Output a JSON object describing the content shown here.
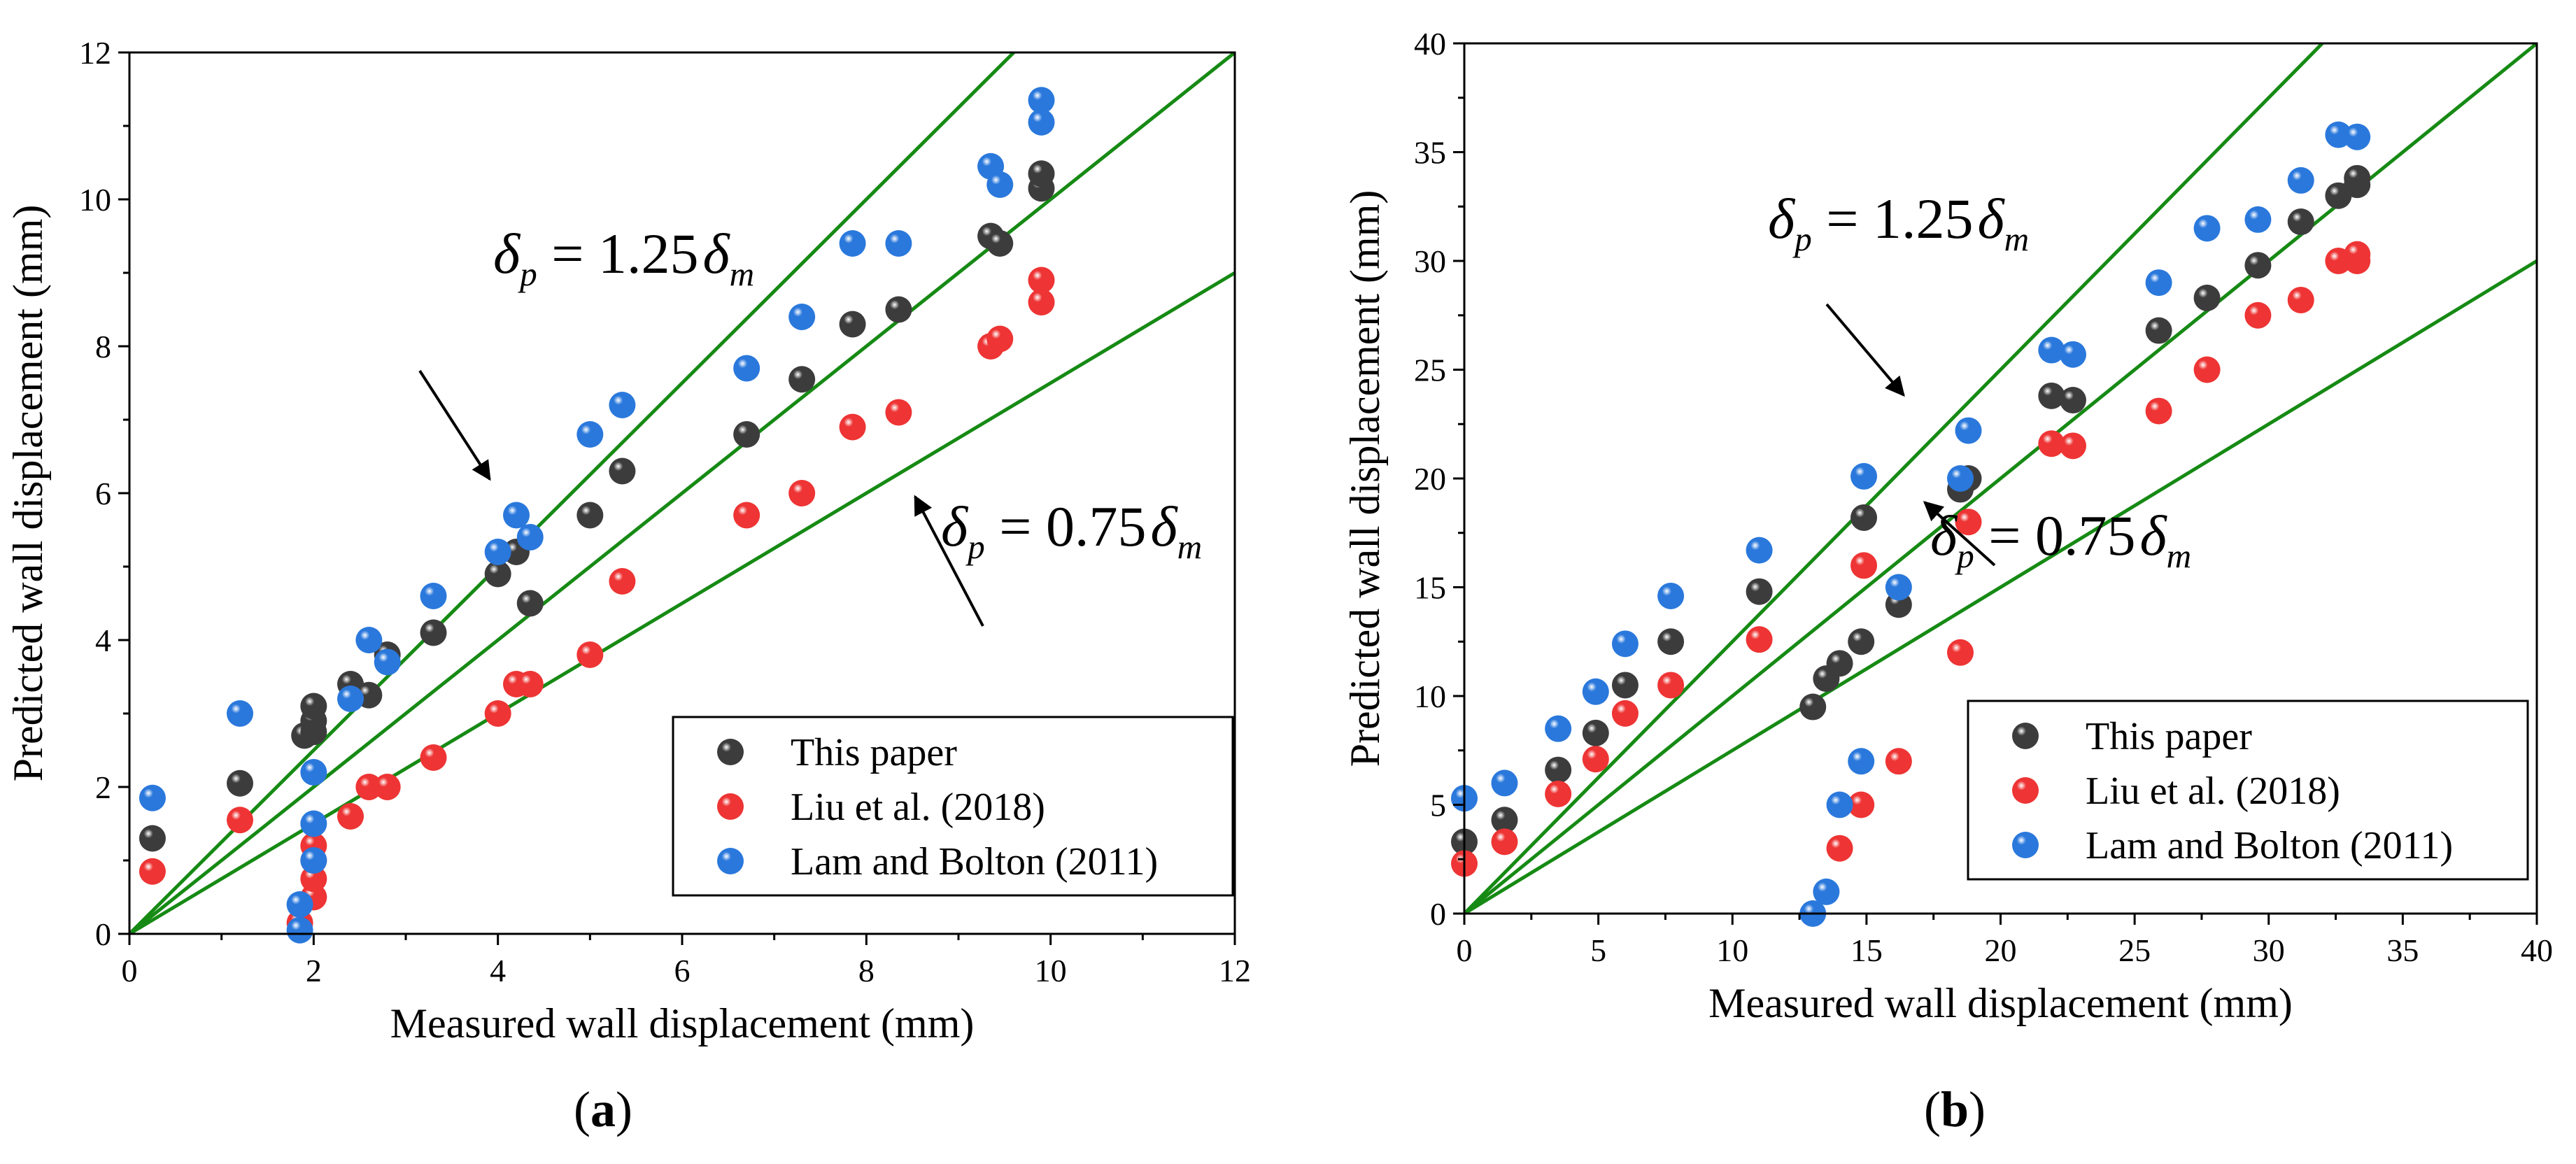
{
  "chart_data": [
    {
      "panel": "(a)",
      "panel_letter": "a",
      "type": "scatter",
      "xlabel": "Measured wall displacement (mm)",
      "ylabel": "Predicted wall displacement (mm)",
      "xlim": [
        0,
        12
      ],
      "ylim": [
        0,
        12
      ],
      "xticks": [
        0,
        2,
        4,
        6,
        8,
        10,
        12
      ],
      "yticks": [
        0,
        2,
        4,
        6,
        8,
        10,
        12
      ],
      "legend": [
        "This paper",
        "Liu et al. (2018)",
        "Lam and Bolton (2011)"
      ],
      "lines": [
        {
          "slope": 1.25,
          "label": "δp = 1.25δm"
        },
        {
          "slope": 1.0,
          "label": ""
        },
        {
          "slope": 0.75,
          "label": "δp = 0.75δm"
        }
      ],
      "annotations": [
        {
          "sym1": "δ",
          "sub1": "p",
          "eq": " = 1.25",
          "sym2": "δ",
          "sub2": "m"
        },
        {
          "sym1": "δ",
          "sub1": "p",
          "eq": " = 0.75",
          "sym2": "δ",
          "sub2": "m"
        }
      ],
      "series": [
        {
          "name": "This paper",
          "color": "#3c3c3c",
          "points": [
            [
              0.25,
              1.3
            ],
            [
              1.2,
              2.05
            ],
            [
              1.9,
              2.7
            ],
            [
              2.0,
              2.75
            ],
            [
              2.0,
              2.9
            ],
            [
              2.0,
              3.1
            ],
            [
              2.4,
              3.4
            ],
            [
              2.6,
              3.25
            ],
            [
              2.8,
              3.8
            ],
            [
              3.3,
              4.1
            ],
            [
              4.0,
              4.9
            ],
            [
              4.2,
              5.2
            ],
            [
              4.35,
              4.5
            ],
            [
              5.0,
              5.7
            ],
            [
              5.35,
              6.3
            ],
            [
              6.7,
              6.8
            ],
            [
              7.3,
              7.55
            ],
            [
              7.85,
              8.3
            ],
            [
              8.35,
              8.5
            ],
            [
              9.35,
              9.5
            ],
            [
              9.45,
              9.4
            ],
            [
              9.9,
              10.15
            ],
            [
              9.9,
              10.35
            ]
          ]
        },
        {
          "name": "Liu et al. (2018)",
          "color": "#ee3434",
          "points": [
            [
              0.25,
              0.85
            ],
            [
              1.2,
              1.55
            ],
            [
              1.85,
              0.15
            ],
            [
              2.0,
              0.5
            ],
            [
              2.0,
              0.75
            ],
            [
              2.0,
              1.0
            ],
            [
              2.0,
              1.2
            ],
            [
              2.4,
              1.6
            ],
            [
              2.6,
              2.0
            ],
            [
              2.8,
              2.0
            ],
            [
              3.3,
              2.4
            ],
            [
              4.0,
              3.0
            ],
            [
              4.2,
              3.4
            ],
            [
              4.35,
              3.4
            ],
            [
              5.0,
              3.8
            ],
            [
              5.35,
              4.8
            ],
            [
              6.7,
              5.7
            ],
            [
              7.3,
              6.0
            ],
            [
              7.85,
              6.9
            ],
            [
              8.35,
              7.1
            ],
            [
              9.35,
              8.0
            ],
            [
              9.45,
              8.1
            ],
            [
              9.9,
              8.6
            ],
            [
              9.9,
              8.9
            ]
          ]
        },
        {
          "name": "Lam and Bolton (2011)",
          "color": "#2a78dc",
          "points": [
            [
              0.25,
              1.85
            ],
            [
              1.2,
              3.0
            ],
            [
              1.85,
              0.05
            ],
            [
              1.85,
              0.4
            ],
            [
              2.0,
              1.0
            ],
            [
              2.0,
              1.5
            ],
            [
              2.0,
              2.2
            ],
            [
              2.4,
              3.2
            ],
            [
              2.6,
              4.0
            ],
            [
              2.8,
              3.7
            ],
            [
              3.3,
              4.6
            ],
            [
              4.0,
              5.2
            ],
            [
              4.2,
              5.7
            ],
            [
              4.35,
              5.4
            ],
            [
              5.0,
              6.8
            ],
            [
              5.35,
              7.2
            ],
            [
              6.7,
              7.7
            ],
            [
              7.3,
              8.4
            ],
            [
              7.85,
              9.4
            ],
            [
              8.35,
              9.4
            ],
            [
              9.35,
              10.45
            ],
            [
              9.45,
              10.2
            ],
            [
              9.9,
              11.05
            ],
            [
              9.9,
              11.35
            ]
          ]
        }
      ]
    },
    {
      "panel": "(b)",
      "panel_letter": "b",
      "type": "scatter",
      "xlabel": "Measured wall displacement (mm)",
      "ylabel": "Predicted wall displacement (mm)",
      "xlim": [
        0,
        40
      ],
      "ylim": [
        0,
        40
      ],
      "xticks": [
        0,
        5,
        10,
        15,
        20,
        25,
        30,
        35,
        40
      ],
      "yticks": [
        0,
        5,
        10,
        15,
        20,
        25,
        30,
        35,
        40
      ],
      "legend": [
        "This paper",
        "Liu et al. (2018)",
        "Lam and Bolton (2011)"
      ],
      "lines": [
        {
          "slope": 1.25,
          "label": "δp = 1.25δm"
        },
        {
          "slope": 1.0,
          "label": ""
        },
        {
          "slope": 0.75,
          "label": "δp = 0.75δm"
        }
      ],
      "annotations": [
        {
          "sym1": "δ",
          "sub1": "p",
          "eq": " = 1.25",
          "sym2": "δ",
          "sub2": "m"
        },
        {
          "sym1": "δ",
          "sub1": "p",
          "eq": " = 0.75",
          "sym2": "δ",
          "sub2": "m"
        }
      ],
      "series": [
        {
          "name": "This paper",
          "color": "#3c3c3c",
          "points": [
            [
              0,
              3.3
            ],
            [
              1.5,
              4.3
            ],
            [
              3.5,
              6.6
            ],
            [
              4.9,
              8.3
            ],
            [
              6.0,
              10.5
            ],
            [
              7.7,
              12.5
            ],
            [
              11.0,
              14.8
            ],
            [
              13.0,
              9.5
            ],
            [
              13.5,
              10.8
            ],
            [
              14.0,
              11.5
            ],
            [
              14.8,
              12.5
            ],
            [
              14.9,
              18.2
            ],
            [
              16.2,
              14.2
            ],
            [
              18.5,
              19.5
            ],
            [
              18.8,
              20.0
            ],
            [
              21.9,
              23.8
            ],
            [
              22.7,
              23.6
            ],
            [
              25.9,
              26.8
            ],
            [
              27.7,
              28.3
            ],
            [
              29.6,
              29.8
            ],
            [
              31.2,
              31.8
            ],
            [
              32.6,
              33.0
            ],
            [
              33.3,
              33.5
            ],
            [
              33.3,
              33.8
            ]
          ]
        },
        {
          "name": "Liu et al. (2018)",
          "color": "#ee3434",
          "points": [
            [
              0,
              2.3
            ],
            [
              1.5,
              3.3
            ],
            [
              3.5,
              5.5
            ],
            [
              4.9,
              7.1
            ],
            [
              6.0,
              9.2
            ],
            [
              7.7,
              10.5
            ],
            [
              11.0,
              12.6
            ],
            [
              14.0,
              3.0
            ],
            [
              14.8,
              5.0
            ],
            [
              14.9,
              16.0
            ],
            [
              16.2,
              7.0
            ],
            [
              18.5,
              12.0
            ],
            [
              18.8,
              18.0
            ],
            [
              21.9,
              21.6
            ],
            [
              22.7,
              21.5
            ],
            [
              25.9,
              23.1
            ],
            [
              27.7,
              25.0
            ],
            [
              29.6,
              27.5
            ],
            [
              31.2,
              28.2
            ],
            [
              32.6,
              30.0
            ],
            [
              33.3,
              30.0
            ],
            [
              33.3,
              30.3
            ]
          ]
        },
        {
          "name": "Lam and Bolton (2011)",
          "color": "#2a78dc",
          "points": [
            [
              0,
              5.3
            ],
            [
              1.5,
              6.0
            ],
            [
              3.5,
              8.5
            ],
            [
              4.9,
              10.2
            ],
            [
              6.0,
              12.4
            ],
            [
              7.7,
              14.6
            ],
            [
              11.0,
              16.7
            ],
            [
              13.0,
              0.0
            ],
            [
              13.5,
              1.0
            ],
            [
              14.0,
              5.0
            ],
            [
              14.8,
              7.0
            ],
            [
              14.9,
              20.1
            ],
            [
              16.2,
              15.0
            ],
            [
              18.5,
              20.0
            ],
            [
              18.8,
              22.2
            ],
            [
              21.9,
              25.9
            ],
            [
              22.7,
              25.7
            ],
            [
              25.9,
              29.0
            ],
            [
              27.7,
              31.5
            ],
            [
              29.6,
              31.9
            ],
            [
              31.2,
              33.7
            ],
            [
              32.6,
              35.8
            ],
            [
              33.3,
              35.7
            ]
          ]
        }
      ]
    }
  ]
}
